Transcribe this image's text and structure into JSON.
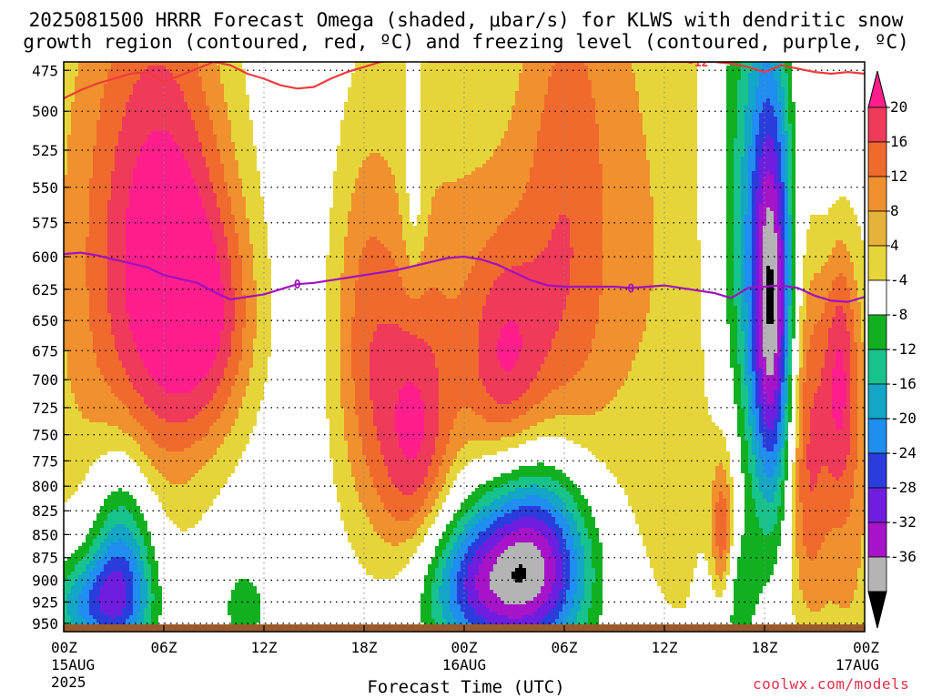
{
  "header": {
    "title_line1": "2025081500 HRRR Forecast Omega (shaded, μbar/s) for KLWS with dendritic snow",
    "title_line2": "growth region (contoured, red, ºC) and freezing level (contoured, purple, ºC)"
  },
  "footer": {
    "xlabel": "Forecast Time (UTC)",
    "credit": "coolwx.com/models"
  },
  "chart_data": {
    "type": "heatmap",
    "title": "2025081500 HRRR Forecast Omega (shaded, μbar/s) for KLWS with dendritic snow growth region (contoured, red, ºC) and freezing level (contoured, purple, ºC)",
    "xlabel": "Forecast Time (UTC)",
    "y_ticks": [
      475,
      500,
      525,
      550,
      575,
      600,
      625,
      650,
      675,
      700,
      725,
      750,
      775,
      800,
      825,
      850,
      875,
      900,
      925,
      950
    ],
    "y_scale": "log-pressure",
    "ylim": [
      960,
      470
    ],
    "x_range_hours": [
      0,
      48
    ],
    "x_ticks": [
      {
        "hour": 0,
        "line1": "00Z",
        "line2": "15AUG",
        "line3": "2025"
      },
      {
        "hour": 6,
        "line1": "06Z",
        "line2": "",
        "line3": ""
      },
      {
        "hour": 12,
        "line1": "12Z",
        "line2": "",
        "line3": ""
      },
      {
        "hour": 18,
        "line1": "18Z",
        "line2": "",
        "line3": ""
      },
      {
        "hour": 24,
        "line1": "00Z",
        "line2": "16AUG",
        "line3": ""
      },
      {
        "hour": 30,
        "line1": "06Z",
        "line2": "",
        "line3": ""
      },
      {
        "hour": 36,
        "line1": "12Z",
        "line2": "",
        "line3": ""
      },
      {
        "hour": 42,
        "line1": "18Z",
        "line2": "",
        "line3": ""
      },
      {
        "hour": 48,
        "line1": "00Z",
        "line2": "17AUG",
        "line3": ""
      }
    ],
    "grid": true,
    "colorbar": {
      "labels": [
        20,
        16,
        12,
        8,
        4,
        -4,
        -8,
        -12,
        -16,
        -20,
        -24,
        -28,
        -32,
        -36
      ],
      "colors": [
        "#ef3a5a",
        "#f06a2e",
        "#f0902e",
        "#e7b23a",
        "#e6d53a",
        "#ffffff",
        "#11b021",
        "#18c28c",
        "#13a6c6",
        "#1f8ef0",
        "#2a3ddc",
        "#6f1ee0",
        "#a613c9",
        "#b4b4b4",
        "#000000"
      ],
      "top_arrow_color": "#ff1e8c"
    },
    "freezing_level": {
      "label": "0",
      "color": "#a010c0",
      "hours": [
        0,
        1,
        2,
        3,
        4,
        5,
        6,
        7,
        8,
        9,
        10,
        11,
        12,
        13,
        14,
        15,
        16,
        17,
        18,
        19,
        20,
        21,
        22,
        23,
        24,
        25,
        26,
        27,
        28,
        29,
        30,
        31,
        32,
        33,
        34,
        35,
        36,
        37,
        38,
        39,
        40,
        41,
        42,
        43,
        44,
        45,
        46,
        47,
        48
      ],
      "pressure": [
        598,
        597,
        599,
        602,
        605,
        608,
        614,
        617,
        620,
        627,
        633,
        631,
        629,
        625,
        621,
        620,
        618,
        616,
        614,
        612,
        610,
        607,
        604,
        601,
        600,
        602,
        606,
        612,
        618,
        622,
        623,
        623,
        623,
        623,
        624,
        623,
        622,
        624,
        626,
        628,
        632,
        624,
        623,
        622,
        624,
        630,
        634,
        635,
        631
      ]
    },
    "dgz_line": {
      "label": "-12",
      "color": "#ee3c3c",
      "hours": [
        0,
        1,
        2,
        3,
        4,
        5,
        6,
        7,
        8,
        9,
        10,
        11,
        12,
        13,
        14,
        15,
        16,
        17,
        18,
        19,
        20,
        21,
        22,
        23,
        24,
        25,
        26,
        27,
        28,
        29,
        30,
        31,
        32,
        33,
        34,
        35,
        36,
        37,
        38,
        39,
        40,
        41,
        42,
        43,
        44,
        45,
        46,
        47,
        48
      ],
      "pressure": [
        492,
        487,
        483,
        480,
        477,
        476,
        482,
        478,
        474,
        470,
        472,
        477,
        480,
        484,
        486,
        485,
        480,
        476,
        473,
        470,
        469,
        469,
        470,
        470,
        470,
        470,
        470,
        470,
        470,
        470,
        470,
        470,
        470,
        470,
        470,
        470,
        470,
        470,
        470,
        470,
        471,
        473,
        476,
        472,
        474,
        476,
        477,
        476,
        477
      ]
    },
    "omega_features": [
      {
        "hour": 6.0,
        "pressure": 630,
        "sx": 2.6,
        "sp": 120,
        "value": 16
      },
      {
        "hour": 9.0,
        "pressure": 650,
        "sx": 2.0,
        "sp": 70,
        "value": 12
      },
      {
        "hour": 2.0,
        "pressure": 620,
        "sx": 3.5,
        "sp": 220,
        "value": 8
      },
      {
        "hour": 6.5,
        "pressure": 500,
        "sx": 3.0,
        "sp": 110,
        "value": 6
      },
      {
        "hour": 18.0,
        "pressure": 660,
        "sx": 1.4,
        "sp": 110,
        "value": 9
      },
      {
        "hour": 21.0,
        "pressure": 760,
        "sx": 1.6,
        "sp": 90,
        "value": 14
      },
      {
        "hour": 20.5,
        "pressure": 700,
        "sx": 3.0,
        "sp": 200,
        "value": 6
      },
      {
        "hour": 26.5,
        "pressure": 690,
        "sx": 1.7,
        "sp": 70,
        "value": 14
      },
      {
        "hour": 25.0,
        "pressure": 640,
        "sx": 3.0,
        "sp": 180,
        "value": 6
      },
      {
        "hour": 30.0,
        "pressure": 590,
        "sx": 2.0,
        "sp": 160,
        "value": 10
      },
      {
        "hour": 32.0,
        "pressure": 560,
        "sx": 3.0,
        "sp": 250,
        "value": 5
      },
      {
        "hour": 37.0,
        "pressure": 620,
        "sx": 3.0,
        "sp": 300,
        "value": 6
      },
      {
        "hour": 40.0,
        "pressure": 780,
        "sx": 1.5,
        "sp": 200,
        "value": 6
      },
      {
        "hour": 39.5,
        "pressure": 860,
        "sx": 0.5,
        "sp": 60,
        "value": 16
      },
      {
        "hour": 43.5,
        "pressure": 540,
        "sx": 1.5,
        "sp": 160,
        "value": 8
      },
      {
        "hour": 44.5,
        "pressure": 770,
        "sx": 0.9,
        "sp": 130,
        "value": 14
      },
      {
        "hour": 47.0,
        "pressure": 780,
        "sx": 1.4,
        "sp": 210,
        "value": 10
      },
      {
        "hour": 46.5,
        "pressure": 690,
        "sx": 0.7,
        "sp": 80,
        "value": 12
      },
      {
        "hour": 3.5,
        "pressure": 880,
        "sx": 1.4,
        "sp": 80,
        "value": -20
      },
      {
        "hour": 2.0,
        "pressure": 925,
        "sx": 2.0,
        "sp": 40,
        "value": -12
      },
      {
        "hour": 1.0,
        "pressure": 930,
        "sx": 2.0,
        "sp": 40,
        "value": -6
      },
      {
        "hour": 28.5,
        "pressure": 880,
        "sx": 2.3,
        "sp": 75,
        "value": -28
      },
      {
        "hour": 24.5,
        "pressure": 905,
        "sx": 2.4,
        "sp": 60,
        "value": -20
      },
      {
        "hour": 26.5,
        "pressure": 870,
        "sx": 3.5,
        "sp": 110,
        "value": -6
      },
      {
        "hour": 42.5,
        "pressure": 640,
        "sx": 0.9,
        "sp": 120,
        "value": -30
      },
      {
        "hour": 41.0,
        "pressure": 630,
        "sx": 1.8,
        "sp": 180,
        "value": -14
      },
      {
        "hour": 42.0,
        "pressure": 550,
        "sx": 1.6,
        "sp": 120,
        "value": -6
      },
      {
        "hour": 40.0,
        "pressure": 920,
        "sx": 1.0,
        "sp": 60,
        "value": -12
      },
      {
        "hour": 46.0,
        "pressure": 540,
        "sx": 1.5,
        "sp": 80,
        "value": -6
      },
      {
        "hour": 10.8,
        "pressure": 930,
        "sx": 1.2,
        "sp": 40,
        "value": -6
      },
      {
        "hour": 21.0,
        "pressure": 560,
        "sx": 0.5,
        "sp": 50,
        "value": -6
      }
    ]
  }
}
